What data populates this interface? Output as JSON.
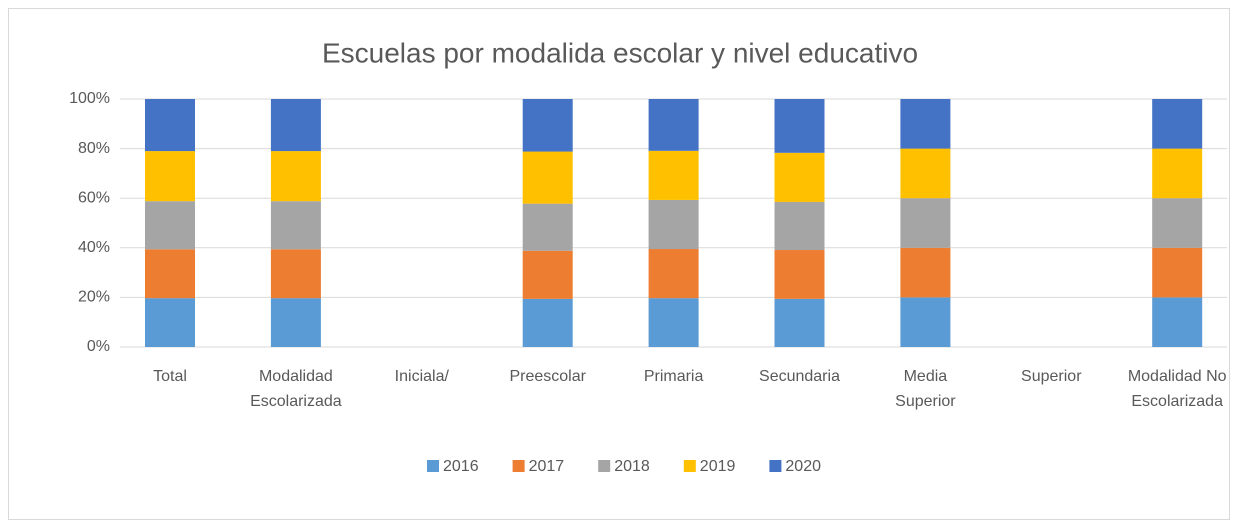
{
  "chart_data": {
    "type": "stacked_bar_100",
    "title": "Escuelas por modalida escolar y nivel educativo",
    "categories": [
      "Total",
      "Modalidad Escolarizada",
      "Iniciala/",
      "Preescolar",
      "Primaria",
      "Secundaria",
      "Media Superior",
      "Superior",
      "Modalidad No Escolarizada"
    ],
    "series": [
      {
        "name": "2016",
        "color": "#5b9bd5",
        "values": [
          19.7,
          19.7,
          null,
          19.4,
          19.7,
          19.4,
          20,
          null,
          20
        ]
      },
      {
        "name": "2017",
        "color": "#ed7d31",
        "values": [
          19.7,
          19.7,
          null,
          19.4,
          19.8,
          19.7,
          20,
          null,
          20
        ]
      },
      {
        "name": "2018",
        "color": "#a5a5a5",
        "values": [
          19.4,
          19.4,
          null,
          19.0,
          19.8,
          19.4,
          20,
          null,
          20
        ]
      },
      {
        "name": "2019",
        "color": "#ffc000",
        "values": [
          20.2,
          20.2,
          null,
          21.0,
          19.8,
          19.8,
          20,
          null,
          20
        ]
      },
      {
        "name": "2020",
        "color": "#4472c4",
        "values": [
          21.0,
          21.0,
          null,
          21.2,
          20.9,
          21.7,
          20,
          null,
          20
        ]
      }
    ],
    "ylim": [
      0,
      100
    ],
    "yticks": [
      {
        "value": 0,
        "label": "0%"
      },
      {
        "value": 20,
        "label": "20%"
      },
      {
        "value": 40,
        "label": "40%"
      },
      {
        "value": 60,
        "label": "60%"
      },
      {
        "value": 80,
        "label": "80%"
      },
      {
        "value": 100,
        "label": "100%"
      }
    ],
    "grid": true,
    "legend": "bottom"
  }
}
